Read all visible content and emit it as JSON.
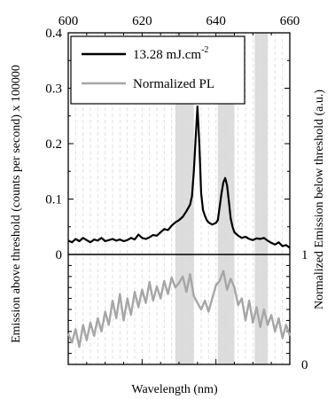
{
  "chart_data": {
    "type": "line",
    "x_axis": {
      "label": "Wavelength (nm)",
      "range": [
        600,
        660
      ],
      "ticks": [
        600,
        620,
        640,
        660
      ],
      "tick_labels": [
        "600",
        "620",
        "640",
        "660"
      ],
      "position": "top"
    },
    "y_axis_left": {
      "label": "Emission above threshold (counts per second)  x 100000",
      "range": [
        0,
        0.4
      ],
      "ticks": [
        0,
        0.1,
        0.2,
        0.3,
        0.4
      ],
      "tick_labels": [
        "0",
        "0.1",
        "0.2",
        "0.3",
        "0.4"
      ]
    },
    "y_axis_right": {
      "label": "Normalized Emission below threshold (a.u.)",
      "range": [
        0,
        1
      ],
      "ticks": [
        0,
        1
      ],
      "tick_labels": [
        "0",
        "1"
      ]
    },
    "shaded_bands": [
      [
        629,
        634
      ],
      [
        640.5,
        645
      ],
      [
        650.5,
        654
      ]
    ],
    "grid": "vertical dashed",
    "legend": {
      "placement": "top-left",
      "entries": [
        {
          "label": "13.28  mJ.cm",
          "superscript": "-2",
          "color": "#000000"
        },
        {
          "label": "Normalized PL",
          "color": "#a6a6a6"
        }
      ]
    },
    "series": [
      {
        "name": "13.28 mJ.cm-2",
        "color": "#000000",
        "panel": "top",
        "x": [
          600,
          601,
          602,
          603,
          604,
          605,
          606,
          607,
          608,
          609,
          610,
          611,
          612,
          613,
          614,
          615,
          616,
          617,
          618,
          619,
          620,
          621,
          622,
          623,
          624,
          625,
          626,
          627,
          628,
          629,
          630,
          631,
          632,
          633,
          633.5,
          634,
          634.5,
          635,
          635.5,
          636,
          636.5,
          637,
          637.5,
          638,
          639,
          640,
          640.5,
          641,
          641.5,
          642,
          642.5,
          643,
          643.5,
          644,
          644.5,
          645,
          646,
          647,
          648,
          649,
          650,
          651,
          652,
          653,
          654,
          655,
          656,
          657,
          658,
          659,
          660
        ],
        "y": [
          0.025,
          0.022,
          0.028,
          0.024,
          0.03,
          0.026,
          0.022,
          0.027,
          0.025,
          0.03,
          0.024,
          0.026,
          0.028,
          0.025,
          0.027,
          0.024,
          0.026,
          0.03,
          0.027,
          0.036,
          0.03,
          0.028,
          0.031,
          0.035,
          0.034,
          0.04,
          0.046,
          0.044,
          0.052,
          0.058,
          0.062,
          0.068,
          0.078,
          0.09,
          0.105,
          0.15,
          0.21,
          0.267,
          0.2,
          0.11,
          0.08,
          0.07,
          0.062,
          0.058,
          0.054,
          0.057,
          0.062,
          0.085,
          0.11,
          0.13,
          0.138,
          0.125,
          0.095,
          0.065,
          0.05,
          0.04,
          0.034,
          0.03,
          0.032,
          0.028,
          0.026,
          0.029,
          0.028,
          0.03,
          0.025,
          0.021,
          0.018,
          0.022,
          0.015,
          0.017,
          0.012
        ]
      },
      {
        "name": "Normalized PL",
        "color": "#a6a6a6",
        "panel": "bottom",
        "x": [
          600,
          601,
          602,
          603,
          604,
          605,
          606,
          607,
          608,
          609,
          610,
          611,
          612,
          613,
          614,
          615,
          616,
          617,
          618,
          619,
          620,
          621,
          622,
          623,
          624,
          625,
          626,
          627,
          628,
          629,
          630,
          631,
          632,
          633,
          634,
          635,
          636,
          637,
          638,
          639,
          640,
          641,
          642,
          643,
          644,
          645,
          646,
          647,
          648,
          649,
          650,
          651,
          652,
          653,
          654,
          655,
          656,
          657,
          658,
          659,
          660
        ],
        "y": [
          0.28,
          0.2,
          0.32,
          0.16,
          0.36,
          0.22,
          0.38,
          0.26,
          0.42,
          0.3,
          0.48,
          0.36,
          0.58,
          0.42,
          0.64,
          0.4,
          0.6,
          0.45,
          0.66,
          0.52,
          0.68,
          0.56,
          0.75,
          0.58,
          0.71,
          0.6,
          0.76,
          0.64,
          0.79,
          0.7,
          0.74,
          0.8,
          0.66,
          0.82,
          0.62,
          0.56,
          0.5,
          0.58,
          0.48,
          0.6,
          0.72,
          0.76,
          0.85,
          0.68,
          0.78,
          0.7,
          0.54,
          0.6,
          0.4,
          0.58,
          0.38,
          0.52,
          0.34,
          0.5,
          0.36,
          0.45,
          0.3,
          0.42,
          0.24,
          0.36,
          0.26
        ]
      }
    ]
  }
}
